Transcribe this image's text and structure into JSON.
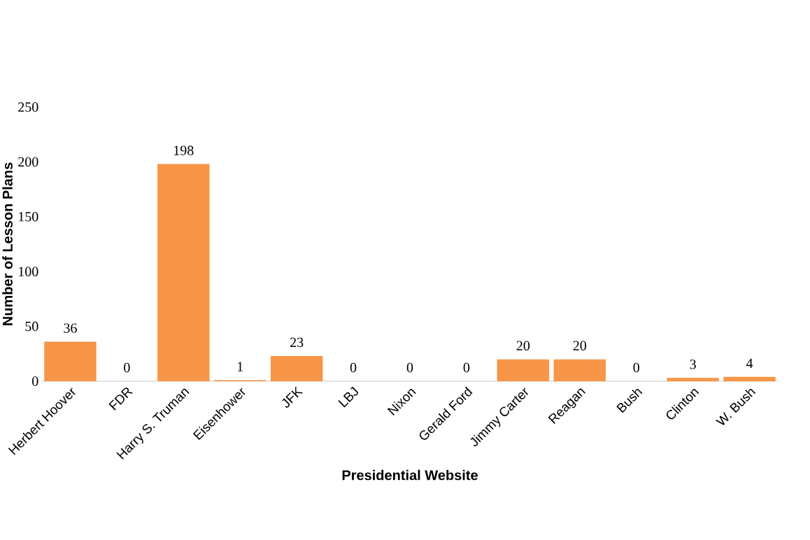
{
  "chart_data": {
    "type": "bar",
    "xlabel": "Presidential Website",
    "ylabel": "Number of Lesson Plans",
    "categories": [
      "Herbert Hoover",
      "FDR",
      "Harry S. Truman",
      "Eisenhower",
      "JFK",
      "LBJ",
      "Nixon",
      "Gerald Ford",
      "Jimmy Carter",
      "Reagan",
      "Bush",
      "Clinton",
      "W. Bush"
    ],
    "values": [
      36,
      0,
      198,
      1,
      23,
      0,
      0,
      0,
      20,
      20,
      0,
      3,
      4
    ],
    "color": "#f79646",
    "ylim": [
      0,
      250
    ],
    "yticks": [
      0,
      50,
      100,
      150,
      200,
      250
    ],
    "data_labels": true
  }
}
